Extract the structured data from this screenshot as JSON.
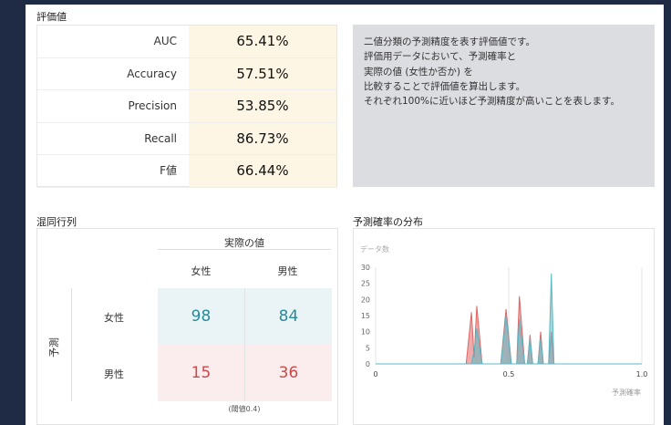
{
  "metrics": {
    "title": "評価値",
    "rows": [
      {
        "label": "AUC",
        "value": "65.41%"
      },
      {
        "label": "Accuracy",
        "value": "57.51%"
      },
      {
        "label": "Precision",
        "value": "53.85%"
      },
      {
        "label": "Recall",
        "value": "86.73%"
      },
      {
        "label": "F値",
        "value": "66.44%"
      }
    ]
  },
  "description": [
    "二値分類の予測精度を表す評価値です。",
    "評価用データにおいて、予測確率と",
    "実際の値 (女性か否か) を",
    "比較することで評価値を算出します。",
    "それぞれ100%に近いほど予測精度が高いことを表します。"
  ],
  "confusion": {
    "title": "混同行列",
    "actual_label": "実際の値",
    "predicted_label": "予測",
    "columns": [
      "女性",
      "男性"
    ],
    "rows": [
      {
        "label": "女性",
        "values": [
          98,
          84
        ]
      },
      {
        "label": "男性",
        "values": [
          15,
          36
        ]
      }
    ],
    "threshold": "(閾値0.4)"
  },
  "chart_data": {
    "type": "area",
    "title": "予測確率の分布",
    "y_label": "データ数",
    "x_label": "予測確率",
    "x": [
      0,
      0.34,
      0.36,
      0.37,
      0.38,
      0.4,
      0.47,
      0.49,
      0.51,
      0.53,
      0.54,
      0.56,
      0.57,
      0.58,
      0.59,
      0.61,
      0.62,
      0.63,
      0.65,
      0.66,
      0.67,
      0.69,
      1.0
    ],
    "series": [
      {
        "color": "#e06666",
        "values": [
          0,
          0,
          16,
          2,
          18,
          0,
          0,
          17,
          0,
          0,
          21,
          0,
          0,
          9,
          0,
          0,
          10,
          0,
          0,
          10,
          0,
          0,
          0
        ]
      },
      {
        "color": "#5bb8c4",
        "values": [
          0,
          0,
          0,
          4,
          11,
          0,
          0,
          15,
          0,
          0,
          14,
          0,
          0,
          8,
          0,
          0,
          8,
          0,
          0,
          28,
          0,
          0,
          0
        ]
      }
    ],
    "xlim": [
      0,
      1.0
    ],
    "xticks": [
      0,
      0.5,
      {
        "value": 1.0,
        "label": "1.0"
      }
    ],
    "ylim": [
      0,
      30
    ],
    "yticks": [
      0,
      5,
      10,
      15,
      20,
      25,
      30
    ],
    "grid": true
  }
}
